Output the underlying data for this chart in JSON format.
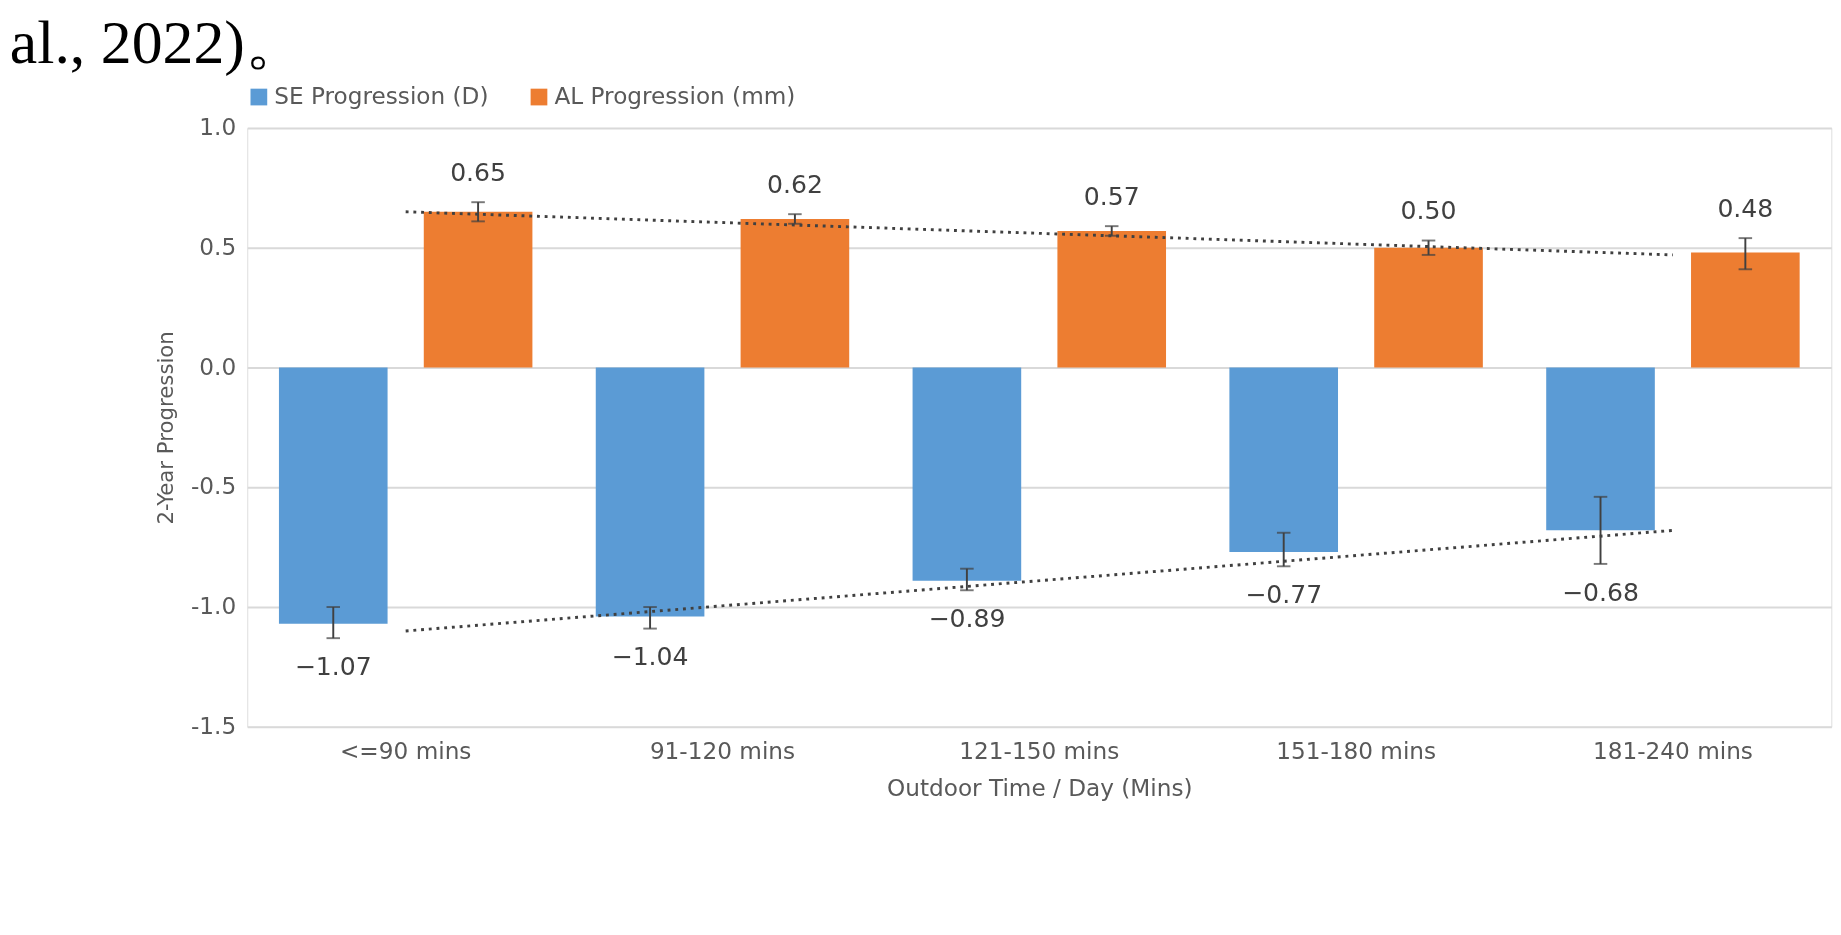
{
  "chart_data": {
    "type": "bar",
    "title": "al., 2022)。",
    "xlabel": "Outdoor Time / Day (Mins)",
    "ylabel": "2-Year Progression",
    "categories": [
      "<=90 mins",
      "91-120 mins",
      "121-150 mins",
      "151-180 mins",
      "181-240 mins"
    ],
    "series": [
      {
        "name": "SE Progression (D)",
        "color": "#5b9bd5",
        "values": [
          -1.07,
          -1.04,
          -0.89,
          -0.77,
          -0.68
        ],
        "errors": [
          [
            -1.13,
            -1.0
          ],
          [
            -1.09,
            -1.0
          ],
          [
            -0.93,
            -0.84
          ],
          [
            -0.83,
            -0.69
          ],
          [
            -0.82,
            -0.54
          ]
        ],
        "value_labels": [
          "−1.07",
          "−1.04",
          "−0.89",
          "−0.77",
          "−0.68"
        ]
      },
      {
        "name": "AL Progression (mm)",
        "color": "#ed7d31",
        "values": [
          0.65,
          0.62,
          0.57,
          0.5,
          0.48
        ],
        "errors": [
          [
            0.61,
            0.69
          ],
          [
            0.6,
            0.64
          ],
          [
            0.55,
            0.59
          ],
          [
            0.47,
            0.53
          ],
          [
            0.41,
            0.54
          ]
        ],
        "value_labels": [
          "0.65",
          "0.62",
          "0.57",
          "0.50",
          "0.48"
        ]
      },
      {
        "type": "line",
        "color": "#404040",
        "line_style": "dotted",
        "x": [
          "<=90 mins",
          "181-240 mins"
        ],
        "values": [
          0.65,
          0.47
        ]
      },
      {
        "type": "line",
        "color": "#404040",
        "line_style": "dotted",
        "x": [
          "<=90 mins",
          "181-240 mins"
        ],
        "values": [
          -1.1,
          -0.68
        ]
      }
    ],
    "ylim": [
      -1.5,
      1.0
    ],
    "yticks": [
      {
        "value": -1.5,
        "label": "-1.5"
      },
      {
        "value": -1.0,
        "label": "-1.0"
      },
      {
        "value": -0.5,
        "label": "-0.5"
      },
      {
        "value": 0,
        "label": "0.0"
      },
      {
        "value": 0.5,
        "label": "0.5"
      },
      {
        "value": 1.0,
        "label": "1.0"
      }
    ],
    "grid": "y",
    "legend": "top"
  }
}
